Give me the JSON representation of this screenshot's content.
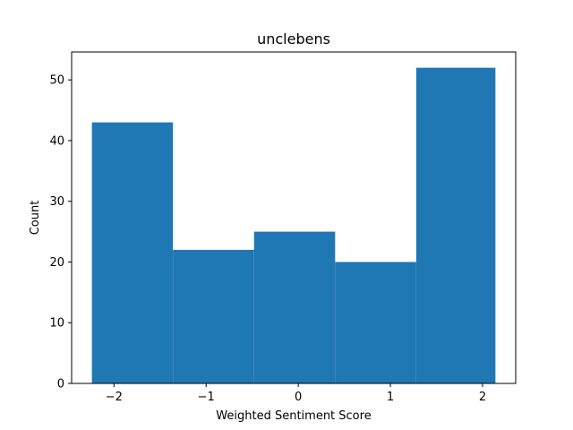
{
  "chart_data": {
    "type": "bar",
    "subtype": "histogram",
    "title": "unclebens",
    "xlabel": "Weighted Sentiment Score",
    "ylabel": "Count",
    "bins": [
      {
        "start": -2.24,
        "end": -1.36,
        "count": 43
      },
      {
        "start": -1.36,
        "end": -0.48,
        "count": 22
      },
      {
        "start": -0.48,
        "end": 0.4,
        "count": 25
      },
      {
        "start": 0.4,
        "end": 1.28,
        "count": 20
      },
      {
        "start": 1.28,
        "end": 2.14,
        "count": 52
      }
    ],
    "xlim": [
      -2.46,
      2.36
    ],
    "ylim": [
      0,
      54.6
    ],
    "x_ticks": [
      -2,
      -1,
      0,
      1,
      2
    ],
    "x_tick_labels": [
      "−2",
      "−1",
      "0",
      "1",
      "2"
    ],
    "y_ticks": [
      0,
      10,
      20,
      30,
      40,
      50
    ],
    "y_tick_labels": [
      "0",
      "10",
      "20",
      "30",
      "40",
      "50"
    ],
    "bar_color": "#1f77b4",
    "grid": false,
    "legend": "none"
  }
}
